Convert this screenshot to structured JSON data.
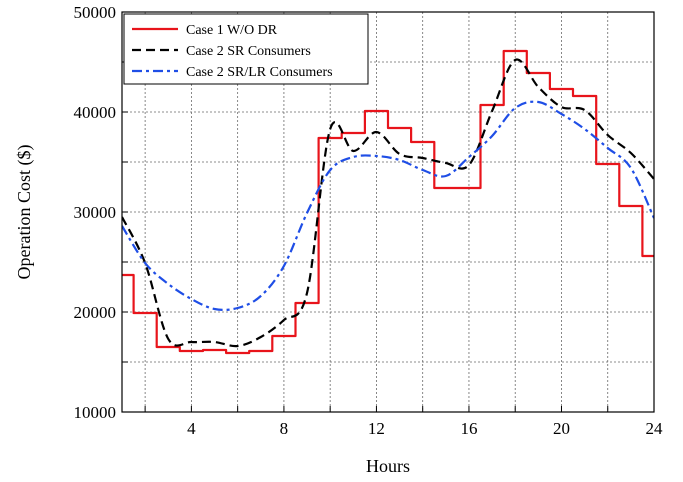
{
  "chart_data": {
    "type": "line",
    "xlabel": "Hours",
    "ylabel": "Operation Cost ($)",
    "xlim": [
      1,
      24
    ],
    "ylim": [
      10000,
      50000
    ],
    "xticks": [
      4,
      8,
      12,
      16,
      20,
      24
    ],
    "xtick_labels": [
      "4",
      "8",
      "12",
      "16",
      "20",
      "24"
    ],
    "yticks": [
      10000,
      20000,
      30000,
      40000,
      50000
    ],
    "ytick_labels": [
      "10000",
      "20000",
      "30000",
      "40000",
      "50000"
    ],
    "grid": true,
    "legend_position": "top-left",
    "series": [
      {
        "name": "Case 1 W/O DR",
        "color": "#e8141b",
        "style": "step",
        "x": [
          1,
          2,
          3,
          4,
          5,
          6,
          7,
          8,
          9,
          10,
          11,
          12,
          13,
          14,
          15,
          16,
          17,
          18,
          19,
          20,
          21,
          22,
          23,
          24
        ],
        "values": [
          23700,
          19900,
          16500,
          16100,
          16200,
          15900,
          16100,
          17600,
          20900,
          37400,
          37900,
          40100,
          38400,
          37000,
          32400,
          32400,
          40700,
          46100,
          43900,
          42300,
          41600,
          34800,
          30600,
          25600
        ]
      },
      {
        "name": "Case 2 SR Consumers",
        "color": "#000000",
        "style": "dashed",
        "x": [
          1,
          2,
          3,
          4,
          5,
          6,
          7,
          8,
          9,
          10,
          11,
          12,
          13,
          14,
          15,
          16,
          17,
          18,
          19,
          20,
          21,
          22,
          23,
          24
        ],
        "values": [
          29500,
          24900,
          17300,
          17000,
          17000,
          16600,
          17500,
          19200,
          21900,
          38300,
          36100,
          38000,
          35800,
          35400,
          34900,
          34700,
          40100,
          45200,
          42500,
          40500,
          40200,
          37700,
          35900,
          33300
        ]
      },
      {
        "name": "Case 2 SR/LR Consumers",
        "color": "#1f4ee6",
        "style": "dashdot",
        "x": [
          1,
          2,
          3,
          4,
          5,
          6,
          7,
          8,
          9,
          10,
          11,
          12,
          13,
          14,
          15,
          16,
          17,
          18,
          19,
          20,
          21,
          22,
          23,
          24
        ],
        "values": [
          28600,
          24900,
          22800,
          21300,
          20300,
          20400,
          21600,
          24600,
          29900,
          34200,
          35500,
          35600,
          35200,
          34200,
          33600,
          35500,
          37600,
          40400,
          41000,
          39800,
          38300,
          36400,
          34400,
          29400
        ]
      }
    ]
  }
}
